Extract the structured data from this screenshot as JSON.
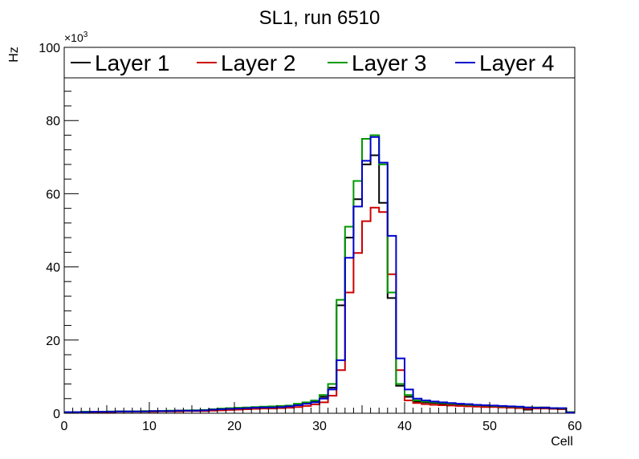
{
  "chart_data": {
    "type": "line",
    "style": "step-histogram",
    "title": "SL1, run 6510",
    "xlabel": "Cell",
    "ylabel": "Hz",
    "y_multiplier_label": "×10",
    "y_multiplier_exp": "3",
    "xlim": [
      0,
      60
    ],
    "ylim": [
      0,
      100
    ],
    "x_ticks": [
      0,
      10,
      20,
      30,
      40,
      50,
      60
    ],
    "x_tick_labels": [
      "0",
      "10",
      "20",
      "30",
      "40",
      "50",
      "60"
    ],
    "y_ticks": [
      0,
      20,
      40,
      60,
      80,
      100
    ],
    "y_tick_labels": [
      "0",
      "20",
      "40",
      "60",
      "80",
      "100"
    ],
    "bin_edges_start": 0,
    "bin_width": 1,
    "legend_position": "top",
    "series": [
      {
        "name": "Layer 1",
        "color": "#000000",
        "values": [
          0.3,
          0.3,
          0.4,
          0.4,
          0.4,
          0.4,
          0.5,
          0.5,
          0.5,
          0.5,
          0.5,
          0.6,
          0.6,
          0.7,
          0.7,
          0.8,
          0.8,
          1.0,
          1.1,
          1.2,
          1.3,
          1.4,
          1.5,
          1.6,
          1.7,
          1.8,
          2.0,
          2.4,
          2.8,
          3.2,
          4.5,
          7.0,
          29.5,
          48.0,
          58.5,
          68.0,
          70.5,
          57.5,
          31.5,
          7.5,
          4.5,
          3.2,
          3.0,
          2.8,
          2.6,
          2.4,
          2.3,
          2.2,
          2.1,
          2.0,
          1.9,
          1.8,
          1.7,
          1.6,
          1.0,
          1.5,
          1.6,
          1.3,
          1.2,
          0.3
        ]
      },
      {
        "name": "Layer 2",
        "color": "#cc0000",
        "values": [
          0.2,
          0.2,
          0.3,
          0.3,
          0.3,
          0.3,
          0.4,
          0.4,
          0.4,
          0.4,
          0.4,
          0.5,
          0.5,
          0.5,
          0.6,
          0.6,
          0.6,
          0.7,
          0.8,
          0.9,
          1.0,
          1.1,
          1.2,
          1.3,
          1.3,
          1.4,
          1.5,
          1.7,
          2.0,
          2.4,
          3.0,
          4.8,
          11.8,
          33.0,
          43.8,
          52.5,
          56.2,
          55.0,
          38.0,
          11.8,
          3.5,
          2.8,
          2.5,
          2.3,
          2.2,
          2.1,
          2.0,
          1.9,
          1.8,
          1.7,
          1.7,
          1.6,
          1.5,
          1.4,
          1.2,
          1.3,
          1.3,
          1.2,
          1.1,
          0.2
        ]
      },
      {
        "name": "Layer 3",
        "color": "#009900",
        "values": [
          0.3,
          0.3,
          0.4,
          0.4,
          0.4,
          0.5,
          0.5,
          0.5,
          0.5,
          0.6,
          0.6,
          0.6,
          0.7,
          0.7,
          0.8,
          0.8,
          0.9,
          1.1,
          1.3,
          1.4,
          1.5,
          1.6,
          1.7,
          1.8,
          1.9,
          2.0,
          2.1,
          2.6,
          3.0,
          3.5,
          5.0,
          8.0,
          31.0,
          51.0,
          63.5,
          75.0,
          76.0,
          68.0,
          33.0,
          8.0,
          5.0,
          3.5,
          3.2,
          3.0,
          2.8,
          2.6,
          2.5,
          2.3,
          2.2,
          2.1,
          2.0,
          1.9,
          1.8,
          1.7,
          1.6,
          1.6,
          1.5,
          1.4,
          1.3,
          0.3
        ]
      },
      {
        "name": "Layer 4",
        "color": "#0000cc",
        "values": [
          0.3,
          0.3,
          0.3,
          0.4,
          0.4,
          0.4,
          0.5,
          0.5,
          0.5,
          0.5,
          0.6,
          0.6,
          0.6,
          0.7,
          0.7,
          0.7,
          0.8,
          1.0,
          1.1,
          1.2,
          1.3,
          1.4,
          1.5,
          1.6,
          1.6,
          1.7,
          1.9,
          2.2,
          2.6,
          3.0,
          4.0,
          6.5,
          14.5,
          42.5,
          56.5,
          69.0,
          75.5,
          68.5,
          48.5,
          15.0,
          6.5,
          4.0,
          3.5,
          3.2,
          3.0,
          2.8,
          2.6,
          2.5,
          2.3,
          2.2,
          2.1,
          2.0,
          1.9,
          1.8,
          1.6,
          1.5,
          1.5,
          1.4,
          1.4,
          0.2
        ]
      }
    ]
  }
}
